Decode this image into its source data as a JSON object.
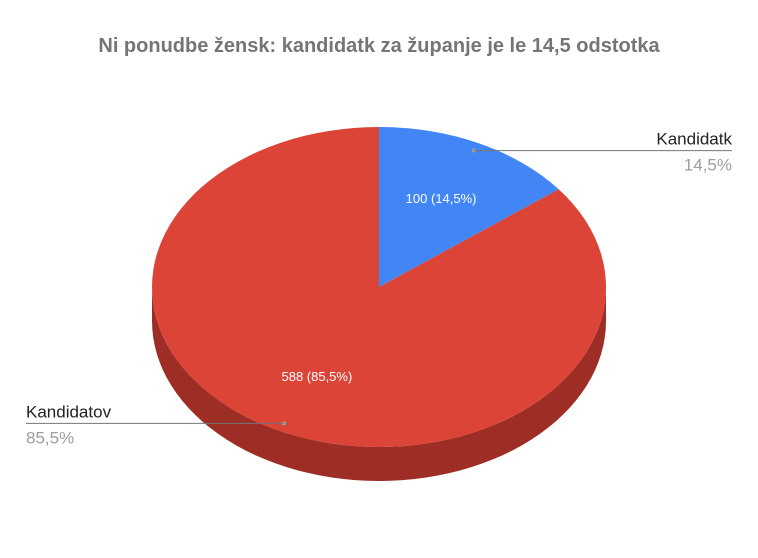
{
  "chart_data": {
    "type": "pie",
    "title": "Ni ponudbe žensk: kandidatk za županje je le 14,5 odstotka",
    "legend_placement": "callouts",
    "style": "3d",
    "slices": [
      {
        "name": "Kandidatk",
        "value": 100,
        "percent_label": "14,5%",
        "data_label": "100 (14,5%)",
        "color": "#4285f4",
        "side_color": "#2d5fb0"
      },
      {
        "name": "Kandidatov",
        "value": 588,
        "percent_label": "85,5%",
        "data_label": "588 (85,5%)",
        "color": "#db4437",
        "side_color": "#9e2d26"
      }
    ]
  }
}
